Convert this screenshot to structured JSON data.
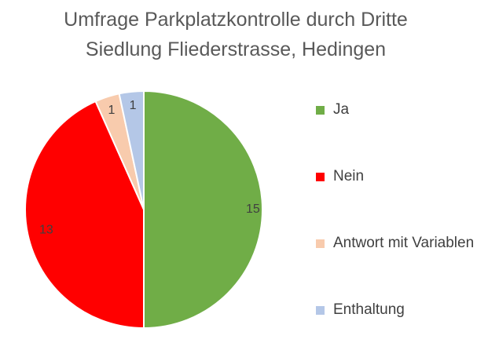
{
  "chart_data": {
    "type": "pie",
    "title": "Umfrage Parkplatzkontrolle durch Dritte",
    "subtitle": "Siedlung Fliederstrasse, Hedingen",
    "series": [
      {
        "name": "Ja",
        "value": 15,
        "color": "#70AD47"
      },
      {
        "name": "Nein",
        "value": 13,
        "color": "#FF0000"
      },
      {
        "name": "Antwort mit Variablen",
        "value": 1,
        "color": "#F8CBAD"
      },
      {
        "name": "Enthaltung",
        "value": 1,
        "color": "#B4C7E7"
      }
    ],
    "legend": "right"
  }
}
